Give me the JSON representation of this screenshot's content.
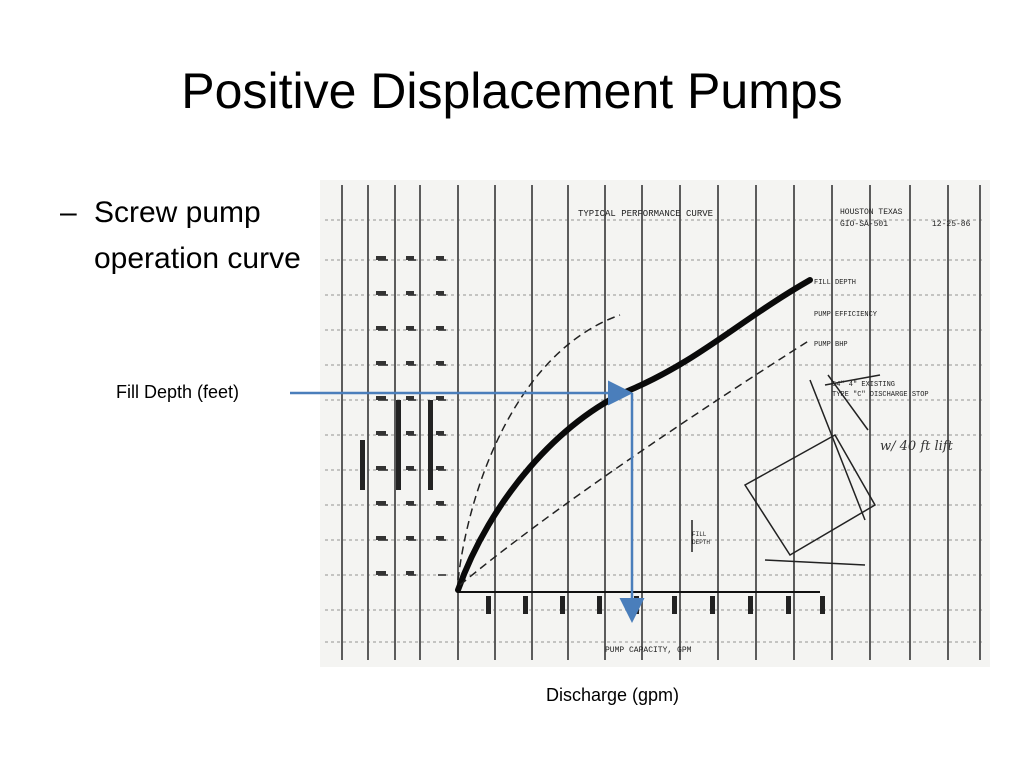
{
  "slide": {
    "title": "Positive Displacement Pumps",
    "bullet_marker": "–",
    "bullet_text": "Screw pump operation curve"
  },
  "labels": {
    "fill_depth": "Fill Depth (feet)",
    "discharge": "Discharge (gpm)"
  },
  "colors": {
    "arrow": "#4a7ebb",
    "scan_ink": "#1a1a1a",
    "scan_paper": "#f4f4f2"
  },
  "scan": {
    "header": "TYPICAL PERFORMANCE CURVE",
    "location": "HOUSTON TEXAS",
    "job_no": "GIO-SA-501",
    "date": "12-25-86",
    "x_axis_label": "PUMP CAPACITY, GPM",
    "curve_labels": [
      "FILL DEPTH",
      "PUMP EFFICIENCY",
      "PUMP BHP"
    ],
    "diagram_note_line1": "54\" 4\" EXISTING",
    "diagram_note_line2": "TYPE \"C\" DISCHARGE STOP",
    "fill_depth_note_line1": "FILL",
    "fill_depth_note_line2": "DEPTH",
    "handwritten_note": "w/ 40 ft lift"
  }
}
